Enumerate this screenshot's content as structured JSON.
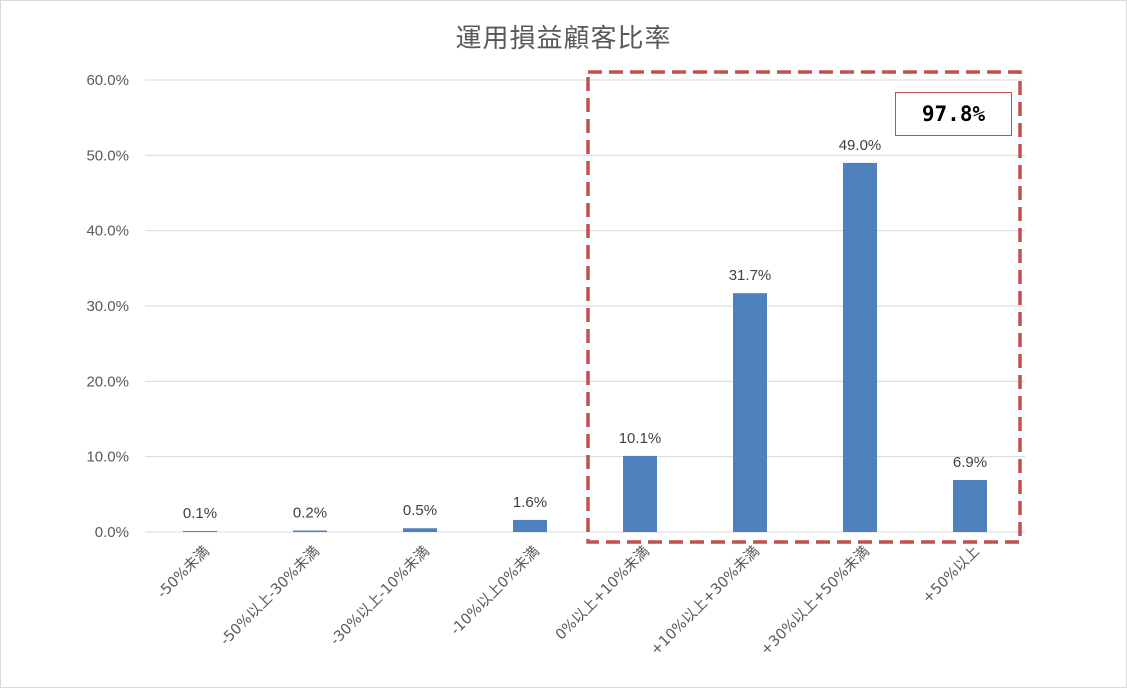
{
  "chart_data": {
    "type": "bar",
    "title": "運用損益顧客比率",
    "categories": [
      "-50%未満",
      "-50%以上-30%未満",
      "-30%以上-10%未満",
      "-10%以上0%未満",
      "0%以上+10%未満",
      "+10%以上+30%未満",
      "+30%以上+50%未満",
      "+50%以上"
    ],
    "values": [
      0.1,
      0.2,
      0.5,
      1.6,
      10.1,
      31.7,
      49.0,
      6.9
    ],
    "data_labels": [
      "0.1%",
      "0.2%",
      "0.5%",
      "1.6%",
      "10.1%",
      "31.7%",
      "49.0%",
      "6.9%"
    ],
    "y_ticks": [
      0,
      10,
      20,
      30,
      40,
      50,
      60
    ],
    "y_tick_labels": [
      "0.0%",
      "10.0%",
      "20.0%",
      "30.0%",
      "40.0%",
      "50.0%",
      "60.0%"
    ],
    "ylim": [
      0,
      60
    ],
    "grid": true,
    "bar_color": "#4f81bd",
    "highlight": {
      "label": "97.8%",
      "covers_categories": [
        "0%以上+10%未満",
        "+10%以上+30%未満",
        "+30%以上+50%未満",
        "+50%以上"
      ],
      "border_color": "#c0504d",
      "border_style": "dashed"
    }
  }
}
